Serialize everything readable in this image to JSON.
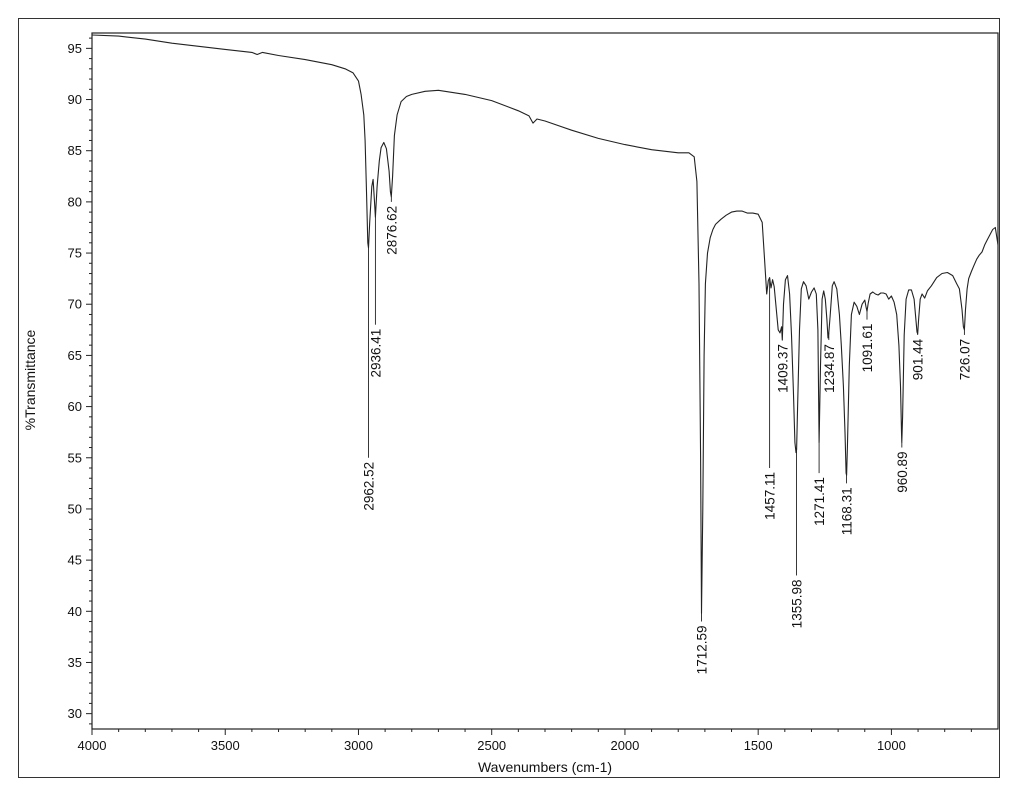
{
  "chart_data": {
    "type": "line",
    "xlabel": "Wavenumbers (cm-1)",
    "ylabel": "%Transmittance",
    "xlim": [
      4000,
      600
    ],
    "ylim": [
      28.5,
      96.5
    ],
    "x_reversed": true,
    "grid": false,
    "x_ticks": [
      4000,
      3500,
      3000,
      2500,
      2000,
      1500,
      1000
    ],
    "x_tick_labels": [
      "4000",
      "3500",
      "3000",
      "2500",
      "2000",
      "1500",
      "1000"
    ],
    "y_ticks": [
      30,
      35,
      40,
      45,
      50,
      55,
      60,
      65,
      70,
      75,
      80,
      85,
      90,
      95
    ],
    "y_tick_labels": [
      "30",
      "35",
      "40",
      "45",
      "50",
      "55",
      "60",
      "65",
      "70",
      "75",
      "80",
      "85",
      "90",
      "95"
    ],
    "series": [
      {
        "x": [
          4000,
          3900,
          3800,
          3700,
          3600,
          3500,
          3400,
          3380,
          3360,
          3300,
          3200,
          3100,
          3050,
          3020,
          3000,
          2990,
          2980,
          2975,
          2970,
          2965,
          2962.52,
          2958,
          2950,
          2945,
          2940,
          2936.41,
          2930,
          2922,
          2915,
          2905,
          2895,
          2885,
          2880,
          2876.62,
          2872,
          2865,
          2855,
          2840,
          2820,
          2800,
          2750,
          2700,
          2600,
          2500,
          2400,
          2360,
          2345,
          2330,
          2300,
          2200,
          2100,
          2000,
          1900,
          1800,
          1760,
          1740,
          1730,
          1722,
          1716,
          1712.59,
          1708,
          1703,
          1698,
          1690,
          1680,
          1670,
          1660,
          1640,
          1620,
          1600,
          1580,
          1560,
          1540,
          1520,
          1500,
          1485,
          1475,
          1468,
          1462,
          1457.11,
          1452,
          1446,
          1440,
          1432,
          1425,
          1418,
          1412,
          1409.37,
          1405,
          1398,
          1390,
          1382,
          1375,
          1368,
          1362,
          1358,
          1355.98,
          1352,
          1345,
          1338,
          1330,
          1320,
          1310,
          1300,
          1290,
          1282,
          1276,
          1271.41,
          1266,
          1260,
          1254,
          1248,
          1242,
          1238,
          1234.87,
          1230,
          1222,
          1215,
          1205,
          1195,
          1188,
          1180,
          1174,
          1170,
          1168.31,
          1165,
          1158,
          1150,
          1140,
          1130,
          1120,
          1110,
          1100,
          1095,
          1091.61,
          1087,
          1080,
          1070,
          1060,
          1050,
          1040,
          1030,
          1020,
          1010,
          1000,
          990,
          980,
          972,
          966,
          962,
          960.89,
          958,
          952,
          945,
          935,
          925,
          915,
          908,
          904,
          901.44,
          898,
          892,
          885,
          875,
          865,
          850,
          830,
          810,
          790,
          770,
          755,
          745,
          735,
          730,
          726.07,
          722,
          716,
          710,
          700,
          690,
          680,
          670,
          660,
          650,
          640,
          630,
          620,
          610,
          600
        ],
        "y": [
          96.3,
          96.2,
          95.9,
          95.5,
          95.2,
          94.9,
          94.6,
          94.4,
          94.6,
          94.3,
          93.9,
          93.4,
          93.0,
          92.6,
          91.8,
          90.5,
          88.5,
          86.0,
          81.0,
          76.0,
          75.5,
          78.0,
          81.5,
          82.2,
          80.0,
          78.5,
          81.5,
          84.0,
          85.3,
          85.8,
          85.2,
          83.0,
          81.0,
          80.5,
          82.5,
          86.5,
          88.5,
          89.8,
          90.3,
          90.5,
          90.8,
          90.9,
          90.5,
          89.9,
          88.9,
          88.4,
          87.7,
          88.1,
          87.9,
          87.0,
          86.2,
          85.6,
          85.1,
          84.8,
          84.8,
          84.4,
          82.0,
          72.0,
          55.0,
          39.8,
          50.0,
          65.0,
          72.0,
          75.0,
          76.5,
          77.3,
          77.8,
          78.3,
          78.7,
          79.0,
          79.1,
          79.1,
          78.9,
          78.9,
          78.8,
          78.0,
          74.0,
          71.0,
          72.3,
          72.6,
          71.6,
          72.4,
          71.7,
          69.5,
          67.5,
          67.2,
          67.8,
          66.5,
          70.0,
          72.4,
          72.8,
          71.0,
          67.0,
          61.5,
          56.5,
          55.5,
          55.8,
          60.0,
          67.5,
          71.5,
          72.2,
          71.8,
          70.5,
          71.2,
          71.6,
          71.0,
          67.5,
          56.5,
          64.0,
          70.5,
          71.3,
          70.5,
          68.5,
          66.7,
          67.2,
          68.8,
          71.8,
          72.2,
          71.5,
          69.0,
          66.0,
          62.0,
          57.5,
          53.5,
          53.3,
          56.0,
          64.0,
          69.0,
          70.2,
          69.8,
          69.0,
          70.0,
          70.4,
          69.7,
          69.3,
          70.1,
          71.0,
          71.2,
          71.0,
          70.9,
          71.1,
          71.1,
          71.0,
          70.5,
          70.8,
          70.2,
          69.0,
          66.0,
          62.0,
          57.5,
          56.5,
          59.0,
          67.0,
          70.5,
          71.4,
          71.4,
          70.5,
          68.5,
          67.3,
          67.1,
          68.5,
          70.5,
          71.0,
          70.6,
          71.3,
          71.8,
          72.6,
          73.0,
          73.1,
          72.8,
          72.0,
          71.5,
          69.5,
          67.8,
          67.5,
          69.5,
          71.5,
          72.5,
          73.2,
          73.8,
          74.4,
          74.8,
          75.1,
          75.8,
          76.3,
          76.8,
          77.3,
          77.5,
          75.8
        ]
      }
    ],
    "peak_labels": [
      {
        "wavenumber": 2962.52,
        "text": "2962.52",
        "end_y": 55.0
      },
      {
        "wavenumber": 2936.41,
        "text": "2936.41",
        "end_y": 68.0
      },
      {
        "wavenumber": 2876.62,
        "text": "2876.62",
        "end_y": 80.0
      },
      {
        "wavenumber": 1712.59,
        "text": "1712.59",
        "end_y": 39.0
      },
      {
        "wavenumber": 1457.11,
        "text": "1457.11",
        "end_y": 54.0
      },
      {
        "wavenumber": 1409.37,
        "text": "1409.37",
        "end_y": 66.5
      },
      {
        "wavenumber": 1355.98,
        "text": "1355.98",
        "end_y": 43.5
      },
      {
        "wavenumber": 1271.41,
        "text": "1271.41",
        "end_y": 53.5
      },
      {
        "wavenumber": 1234.87,
        "text": "1234.87",
        "end_y": 66.5
      },
      {
        "wavenumber": 1168.31,
        "text": "1168.31",
        "end_y": 52.5
      },
      {
        "wavenumber": 1091.61,
        "text": "1091.61",
        "end_y": 68.5
      },
      {
        "wavenumber": 960.89,
        "text": "960.89",
        "end_y": 56.0
      },
      {
        "wavenumber": 901.44,
        "text": "901.44",
        "end_y": 67.0
      },
      {
        "wavenumber": 726.07,
        "text": "726.07",
        "end_y": 67.0
      }
    ]
  }
}
